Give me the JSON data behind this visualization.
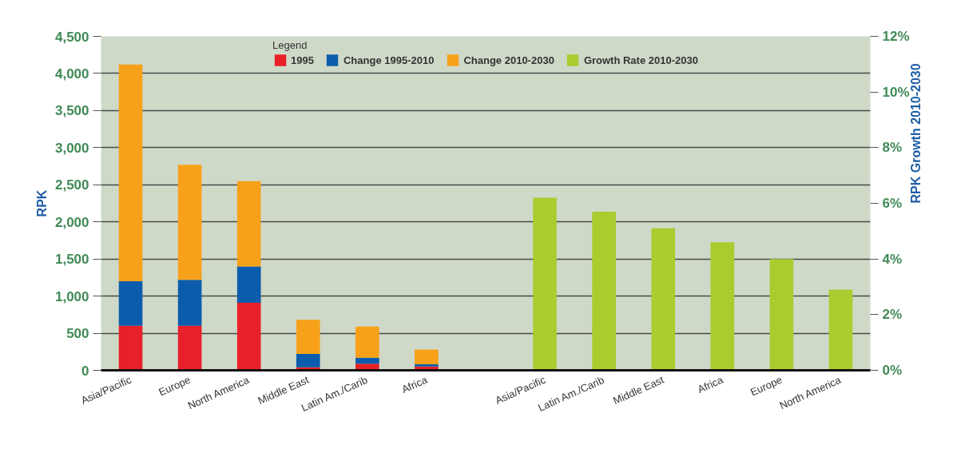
{
  "chart_data": {
    "type": "bar",
    "stacked": true,
    "categories": [
      "Asia/Pacific",
      "Europe",
      "North America",
      "Middle East",
      "Latin Am./Carib",
      "Africa",
      null,
      "Asia/Pacific",
      "Latin Am./Carib",
      "Middle East",
      "Africa",
      "Europe",
      "North America"
    ],
    "series": [
      {
        "name": "1995",
        "color": "#e8202a",
        "values": [
          600,
          600,
          910,
          40,
          90,
          50,
          null,
          null,
          null,
          null,
          null,
          null,
          null
        ]
      },
      {
        "name": "Change 1995-2010",
        "color": "#0b5cad",
        "values": [
          600,
          620,
          490,
          180,
          80,
          30,
          null,
          null,
          null,
          null,
          null,
          null,
          null
        ]
      },
      {
        "name": "Change 2010-2030",
        "color": "#f7a11a",
        "values": [
          2920,
          1550,
          1150,
          460,
          420,
          200,
          null,
          null,
          null,
          null,
          null,
          null,
          null
        ]
      },
      {
        "name": "Growth Rate 2010-2030",
        "color": "#a9cc2f",
        "axis": "y2",
        "values": [
          null,
          null,
          null,
          null,
          null,
          null,
          null,
          6.2,
          5.7,
          5.1,
          4.6,
          4.0,
          2.9
        ]
      }
    ],
    "ylabel": "RPK",
    "y2label": "RPK Growth 2010-2030",
    "legend_title": "Legend",
    "legend": "top",
    "grid": "y",
    "ylim": [
      0,
      4500
    ],
    "yticks": [
      0,
      500,
      {
        "value": 1000,
        "label": "1,000"
      },
      {
        "value": 1500,
        "label": "1,500"
      },
      {
        "value": 2000,
        "label": "2,000"
      },
      {
        "value": 2500,
        "label": "2,500"
      },
      {
        "value": 3000,
        "label": "3,000"
      },
      {
        "value": 3500,
        "label": "3,500"
      },
      {
        "value": 4000,
        "label": "4,000"
      },
      {
        "value": 4500,
        "label": "4,500"
      }
    ],
    "y2lim": [
      0,
      12
    ],
    "y2ticks": [
      {
        "value": 0,
        "label": "0%"
      },
      {
        "value": 2,
        "label": "2%"
      },
      {
        "value": 4,
        "label": "4%"
      },
      {
        "value": 6,
        "label": "6%"
      },
      {
        "value": 8,
        "label": "8%"
      },
      {
        "value": 10,
        "label": "10%"
      },
      {
        "value": 12,
        "label": "12%"
      }
    ]
  }
}
